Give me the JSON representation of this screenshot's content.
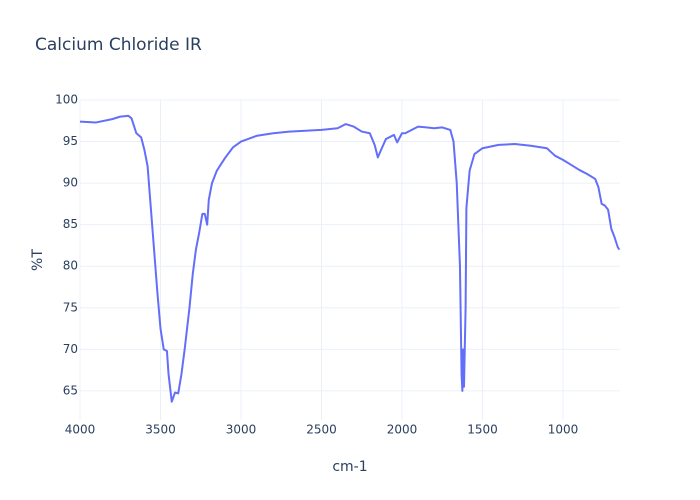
{
  "chart_data": {
    "type": "line",
    "title": "Calcium Chloride IR",
    "x_label": "cm-1",
    "y_label": "%T",
    "color": "#636efa",
    "grid": true,
    "xlim": [
      4000,
      646
    ],
    "ylim": [
      61.5,
      100
    ],
    "xticks": [
      4000,
      3500,
      3000,
      2500,
      2000,
      1500,
      1000
    ],
    "yticks": [
      65,
      70,
      75,
      80,
      85,
      90,
      95,
      100
    ],
    "x": [
      4000,
      3900,
      3800,
      3750,
      3700,
      3680,
      3650,
      3620,
      3600,
      3580,
      3560,
      3540,
      3520,
      3500,
      3480,
      3460,
      3450,
      3430,
      3410,
      3390,
      3370,
      3350,
      3320,
      3300,
      3280,
      3260,
      3240,
      3225,
      3210,
      3200,
      3180,
      3150,
      3100,
      3050,
      3000,
      2900,
      2800,
      2700,
      2600,
      2500,
      2400,
      2350,
      2300,
      2250,
      2200,
      2170,
      2150,
      2130,
      2100,
      2050,
      2030,
      2000,
      1980,
      1950,
      1900,
      1850,
      1800,
      1750,
      1700,
      1680,
      1660,
      1640,
      1630,
      1625,
      1620,
      1615,
      1605,
      1600,
      1580,
      1550,
      1500,
      1400,
      1300,
      1200,
      1100,
      1050,
      1000,
      950,
      900,
      850,
      800,
      780,
      760,
      740,
      720,
      700,
      680,
      660,
      650
    ],
    "values": [
      97.4,
      97.3,
      97.7,
      98.0,
      98.1,
      97.8,
      96.0,
      95.5,
      94.0,
      92.0,
      87,
      82,
      77,
      72.5,
      70,
      69.8,
      67,
      63.7,
      64.8,
      64.7,
      67,
      70,
      75,
      79,
      82,
      84,
      86.3,
      86.3,
      85,
      88,
      90,
      91.5,
      93,
      94.3,
      95,
      95.7,
      96.0,
      96.2,
      96.3,
      96.4,
      96.6,
      97.1,
      96.8,
      96.2,
      96.0,
      94.6,
      93.1,
      94,
      95.3,
      95.8,
      94.9,
      96,
      96.0,
      96.3,
      96.8,
      96.7,
      96.6,
      96.7,
      96.4,
      95,
      90,
      80,
      67,
      65,
      70,
      65.5,
      75,
      87,
      91.5,
      93.5,
      94.2,
      94.6,
      94.7,
      94.5,
      94.2,
      93.3,
      92.8,
      92.2,
      91.6,
      91.1,
      90.5,
      89.5,
      87.5,
      87.3,
      86.8,
      84.5,
      83.5,
      82.3,
      82.0
    ]
  }
}
